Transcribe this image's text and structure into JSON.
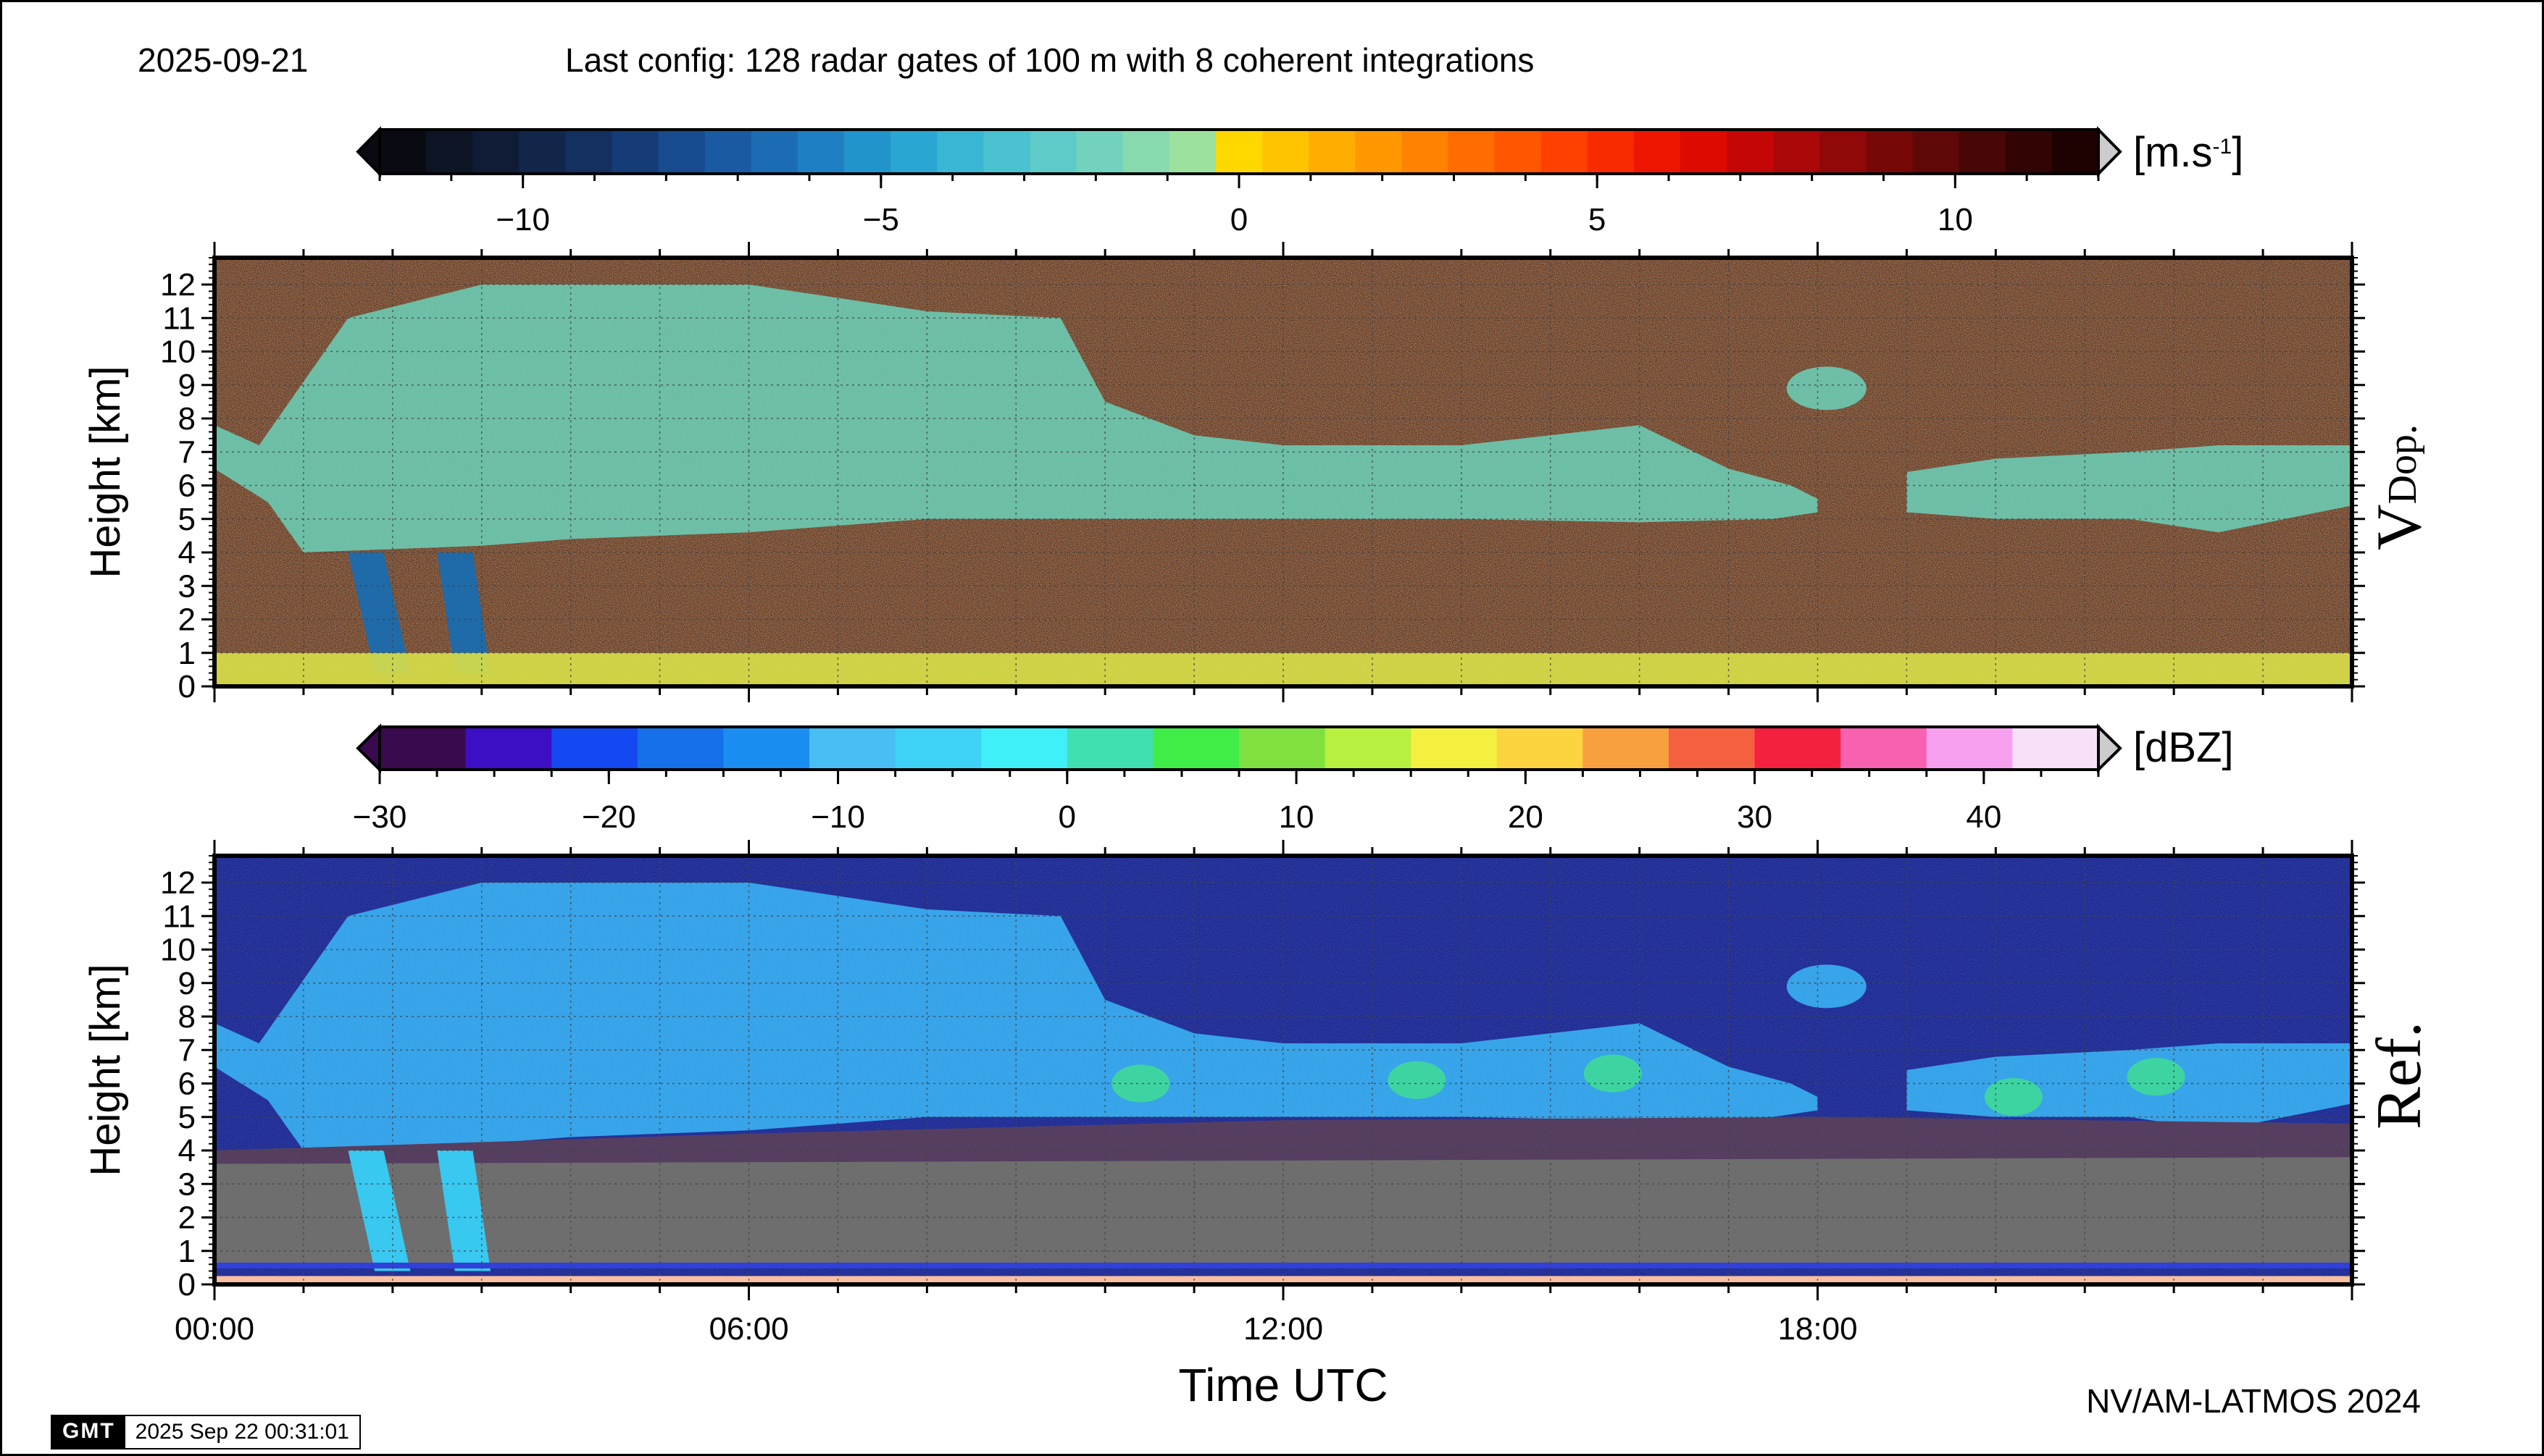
{
  "header": {
    "date": "2025-09-21",
    "config": "Last config: 128 radar gates of 100 m with 8 coherent integrations"
  },
  "footer": {
    "credit": "NV/AM-LATMOS 2024",
    "gmt_logo": "GMT",
    "gmt_timestamp": "2025 Sep 22 00:31:01"
  },
  "chart_data": [
    {
      "type": "heatmap",
      "panel_label": "V",
      "panel_label_sub": "Dop.",
      "ylabel": "Height [km]",
      "ylim": [
        0,
        12.8
      ],
      "yticks": [
        "0",
        "1",
        "2",
        "3",
        "4",
        "5",
        "6",
        "7",
        "8",
        "9",
        "10",
        "11",
        "12"
      ],
      "xlim": [
        0,
        24
      ],
      "colorbar": {
        "unit": "[m.s",
        "unit_sup": "-1",
        "unit_end": "]",
        "range": [
          -12,
          12
        ],
        "ticks": [
          "−10",
          "−5",
          "0",
          "5",
          "10"
        ],
        "tick_values": [
          -10,
          -5,
          0,
          5,
          10
        ],
        "colors": [
          "#0a0a12",
          "#0d1424",
          "#101c36",
          "#12264a",
          "#143060",
          "#163c78",
          "#184a8e",
          "#1a5aa2",
          "#1c6cb4",
          "#1e80c2",
          "#2294cc",
          "#2aa6d2",
          "#38b6d4",
          "#4ac2d0",
          "#5ecbc8",
          "#72d2be",
          "#86daae",
          "#9ce29e",
          "#ffd800",
          "#ffc400",
          "#ffae00",
          "#ff9800",
          "#ff8200",
          "#ff6c00",
          "#ff5600",
          "#ff4000",
          "#f82a00",
          "#ee1600",
          "#dc0a00",
          "#c40606",
          "#aa0808",
          "#900808",
          "#760808",
          "#5e0808",
          "#480606",
          "#320404",
          "#1e0202"
        ]
      },
      "grid": true
    },
    {
      "type": "heatmap",
      "panel_label": "Ref.",
      "ylabel": "Height [km]",
      "xlabel": "Time UTC",
      "ylim": [
        0,
        12.8
      ],
      "yticks": [
        "0",
        "1",
        "2",
        "3",
        "4",
        "5",
        "6",
        "7",
        "8",
        "9",
        "10",
        "11",
        "12"
      ],
      "xlim": [
        0,
        24
      ],
      "xticks": [
        "00:00",
        "06:00",
        "12:00",
        "18:00"
      ],
      "xtick_values": [
        0,
        6,
        12,
        18
      ],
      "colorbar": {
        "unit": "[dBZ]",
        "range": [
          -30,
          45
        ],
        "ticks": [
          "−30",
          "−20",
          "−10",
          "0",
          "10",
          "20",
          "30",
          "40"
        ],
        "tick_values": [
          -30,
          -20,
          -10,
          0,
          10,
          20,
          30,
          40
        ],
        "colors": [
          "#3a0a4e",
          "#3c0ec4",
          "#1448f0",
          "#1670ea",
          "#1a8ef0",
          "#48bef4",
          "#3ed2f6",
          "#40f0f8",
          "#40e0b0",
          "#40ec48",
          "#80e040",
          "#b8f040",
          "#f4f040",
          "#fcd440",
          "#f8a040",
          "#f46040",
          "#f42040",
          "#f860b0",
          "#f8a0f0",
          "#f8e0f8"
        ]
      },
      "grid": true
    }
  ]
}
